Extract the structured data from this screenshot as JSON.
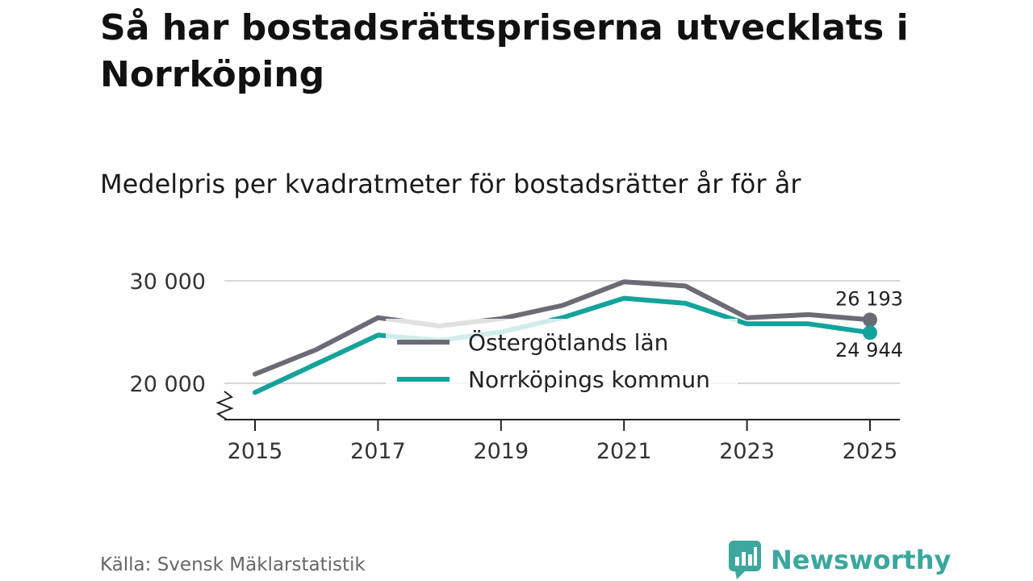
{
  "title": "Så har bostadsrättspriserna utvecklats i Norrköping",
  "subtitle": "Medelpris per kvadratmeter för bostadsrätter år för år",
  "source": "Källa: Svensk Mäklarstatistik",
  "brand": {
    "name": "Newsworthy",
    "color": "#3ba79d"
  },
  "colors": {
    "ostergotland": "#6b6b76",
    "norrkoping": "#14a39a",
    "grid": "#d8d8d8",
    "axis": "#222222"
  },
  "chart_data": {
    "type": "line",
    "title": "Medelpris per kvadratmeter för bostadsrätter år för år",
    "xlabel": "",
    "ylabel": "",
    "x": [
      2015,
      2016,
      2017,
      2018,
      2019,
      2020,
      2021,
      2022,
      2023,
      2024,
      2025
    ],
    "x_tick_values": [
      2015,
      2017,
      2019,
      2021,
      2023,
      2025
    ],
    "x_tick_labels": [
      "2015",
      "2017",
      "2019",
      "2021",
      "2023",
      "2025"
    ],
    "y_tick_values": [
      20000,
      30000
    ],
    "y_tick_labels": [
      "20 000",
      "30 000"
    ],
    "ylim": [
      16300,
      31300
    ],
    "y_axis_break": true,
    "grid": true,
    "legend_position": "center",
    "series": [
      {
        "name": "Östergötlands län",
        "color": "#6b6b76",
        "values": [
          20900,
          23300,
          26400,
          25600,
          26300,
          27600,
          29900,
          29500,
          26400,
          26700,
          26193
        ],
        "end_label": "26 193"
      },
      {
        "name": "Norrköpings kommun",
        "color": "#14a39a",
        "values": [
          19100,
          21900,
          24700,
          24200,
          25000,
          26400,
          28300,
          27800,
          25800,
          25800,
          24944
        ],
        "end_label": "24 944"
      }
    ]
  }
}
